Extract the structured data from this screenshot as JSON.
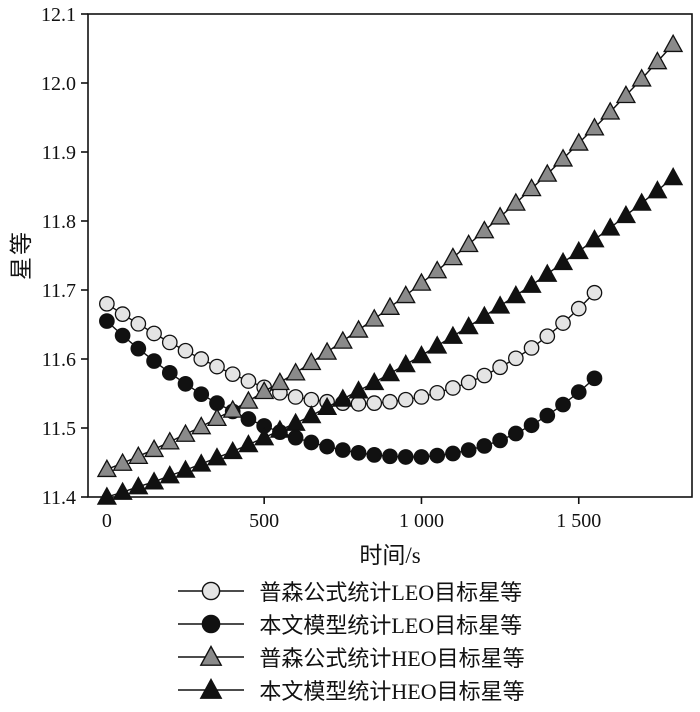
{
  "figure": {
    "ylabel": "星等",
    "xlabel": "时间/s"
  },
  "chart_data": {
    "type": "line",
    "title": "",
    "xlabel": "时间/s",
    "ylabel": "星等",
    "xlim": [
      -60,
      1860
    ],
    "ylim": [
      11.4,
      12.1
    ],
    "x_tick_values": [
      0,
      500,
      1000,
      1500
    ],
    "x_tick_labels": [
      "0",
      "500",
      "1 000",
      "1 500"
    ],
    "y_tick_values": [
      11.4,
      11.5,
      11.6,
      11.7,
      11.8,
      11.9,
      12.0,
      12.1
    ],
    "y_tick_labels": [
      "11.4",
      "11.5",
      "11.6",
      "11.7",
      "11.8",
      "11.9",
      "12.0",
      "12.1"
    ],
    "grid": false,
    "legend_position": "bottom",
    "line_color": "#111111",
    "series": [
      {
        "name": "普森公式统计LEO目标星等",
        "marker": "circle",
        "fill": "#e4e4e4",
        "stroke": "#111111",
        "x": [
          0,
          50,
          100,
          150,
          200,
          250,
          300,
          350,
          400,
          450,
          500,
          550,
          600,
          650,
          700,
          750,
          800,
          850,
          900,
          950,
          1000,
          1050,
          1100,
          1150,
          1200,
          1250,
          1300,
          1350,
          1400,
          1450,
          1500,
          1550
        ],
        "y": [
          11.68,
          11.665,
          11.651,
          11.637,
          11.624,
          11.612,
          11.6,
          11.589,
          11.578,
          11.568,
          11.559,
          11.551,
          11.545,
          11.541,
          11.538,
          11.536,
          11.535,
          11.536,
          11.538,
          11.541,
          11.545,
          11.551,
          11.558,
          11.566,
          11.576,
          11.588,
          11.601,
          11.616,
          11.633,
          11.652,
          11.673,
          11.696
        ]
      },
      {
        "name": "本文模型统计LEO目标星等",
        "marker": "circle",
        "fill": "#111111",
        "stroke": "#111111",
        "x": [
          0,
          50,
          100,
          150,
          200,
          250,
          300,
          350,
          400,
          450,
          500,
          550,
          600,
          650,
          700,
          750,
          800,
          850,
          900,
          950,
          1000,
          1050,
          1100,
          1150,
          1200,
          1250,
          1300,
          1350,
          1400,
          1450,
          1500,
          1550
        ],
        "y": [
          11.655,
          11.634,
          11.615,
          11.597,
          11.58,
          11.564,
          11.549,
          11.536,
          11.524,
          11.513,
          11.503,
          11.494,
          11.486,
          11.479,
          11.473,
          11.468,
          11.464,
          11.461,
          11.459,
          11.458,
          11.458,
          11.46,
          11.463,
          11.468,
          11.474,
          11.482,
          11.492,
          11.504,
          11.518,
          11.534,
          11.552,
          11.572
        ]
      },
      {
        "name": "普森公式统计HEO目标星等",
        "marker": "triangle",
        "fill": "#8a8a8a",
        "stroke": "#111111",
        "x": [
          0,
          50,
          100,
          150,
          200,
          250,
          300,
          350,
          400,
          450,
          500,
          550,
          600,
          650,
          700,
          750,
          800,
          850,
          900,
          950,
          1000,
          1050,
          1100,
          1150,
          1200,
          1250,
          1300,
          1350,
          1400,
          1450,
          1500,
          1550,
          1600,
          1650,
          1700,
          1750,
          1800
        ],
        "y": [
          11.44,
          11.449,
          11.459,
          11.469,
          11.48,
          11.491,
          11.502,
          11.514,
          11.526,
          11.539,
          11.553,
          11.566,
          11.58,
          11.595,
          11.61,
          11.626,
          11.642,
          11.658,
          11.675,
          11.692,
          11.71,
          11.728,
          11.747,
          11.766,
          11.786,
          11.806,
          11.826,
          11.847,
          11.868,
          11.89,
          11.913,
          11.935,
          11.958,
          11.982,
          12.006,
          12.031,
          12.056
        ]
      },
      {
        "name": "本文模型统计HEO目标星等",
        "marker": "triangle",
        "fill": "#111111",
        "stroke": "#111111",
        "x": [
          0,
          50,
          100,
          150,
          200,
          250,
          300,
          350,
          400,
          450,
          500,
          550,
          600,
          650,
          700,
          750,
          800,
          850,
          900,
          950,
          1000,
          1050,
          1100,
          1150,
          1200,
          1250,
          1300,
          1350,
          1400,
          1450,
          1500,
          1550,
          1600,
          1650,
          1700,
          1750,
          1800
        ],
        "y": [
          11.4,
          11.407,
          11.415,
          11.422,
          11.431,
          11.439,
          11.448,
          11.457,
          11.466,
          11.476,
          11.486,
          11.497,
          11.507,
          11.518,
          11.53,
          11.542,
          11.554,
          11.566,
          11.579,
          11.592,
          11.605,
          11.619,
          11.633,
          11.647,
          11.662,
          11.677,
          11.692,
          11.707,
          11.723,
          11.74,
          11.756,
          11.773,
          11.79,
          11.808,
          11.826,
          11.844,
          11.863
        ]
      }
    ]
  }
}
